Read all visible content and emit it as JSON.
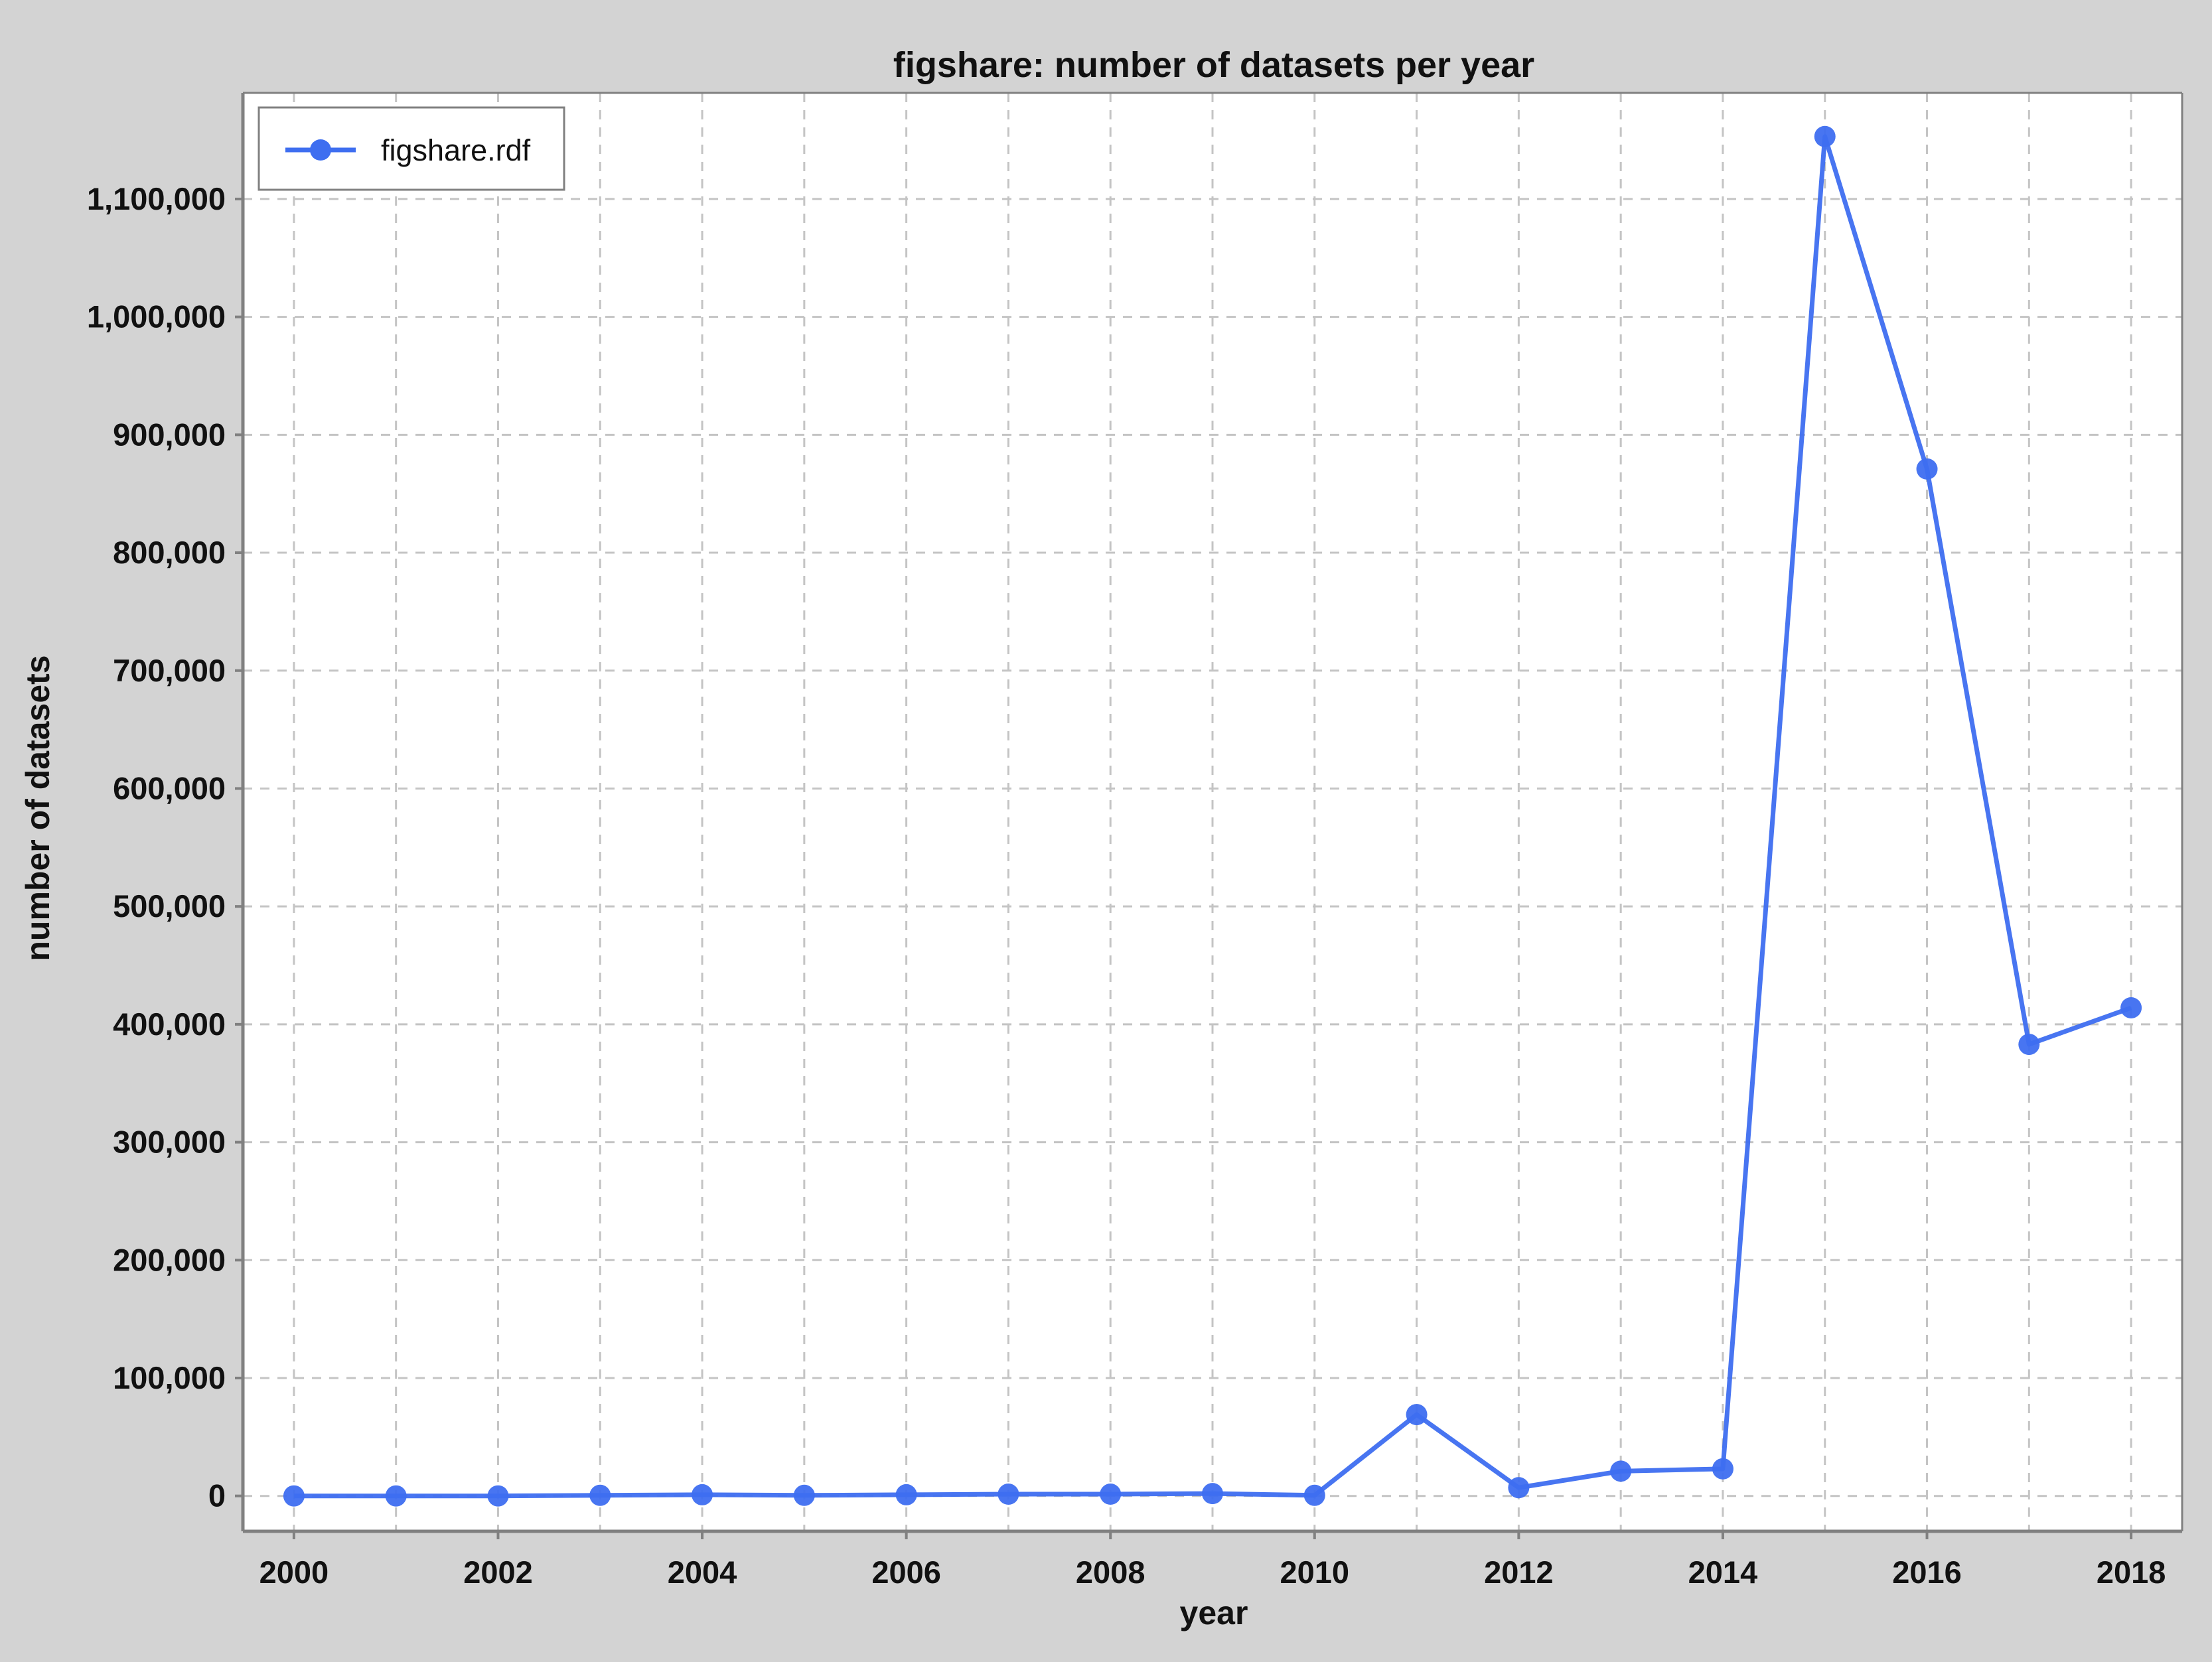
{
  "chart_data": {
    "type": "line",
    "title": "figshare: number of datasets per year",
    "xlabel": "year",
    "ylabel": "number of datasets",
    "x": [
      2000,
      2001,
      2002,
      2003,
      2004,
      2005,
      2006,
      2007,
      2008,
      2009,
      2010,
      2011,
      2012,
      2013,
      2014,
      2015,
      2016,
      2017,
      2018
    ],
    "series": [
      {
        "name": "figshare.rdf",
        "values": [
          0,
          0,
          0,
          500,
          1000,
          500,
          1000,
          1500,
          1500,
          2000,
          500,
          69000,
          7000,
          21000,
          23000,
          1153000,
          871000,
          383000,
          414000
        ],
        "color": "#3e6ef0"
      }
    ],
    "x_ticks": [
      "2000",
      "2002",
      "2004",
      "2006",
      "2008",
      "2010",
      "2012",
      "2014",
      "2016",
      "2018"
    ],
    "y_ticks": [
      "0",
      "100,000",
      "200,000",
      "300,000",
      "400,000",
      "500,000",
      "600,000",
      "700,000",
      "800,000",
      "900,000",
      "1,000,000",
      "1,100,000"
    ],
    "xlim": [
      1999.5,
      2018.5
    ],
    "ylim": [
      -30000,
      1190000
    ],
    "grid": true,
    "legend_position": "top-left",
    "colors": {
      "background": "#d3d3d3",
      "plot_background": "#ffffff",
      "axis": "#808080",
      "grid": "#c4c4c4"
    }
  }
}
